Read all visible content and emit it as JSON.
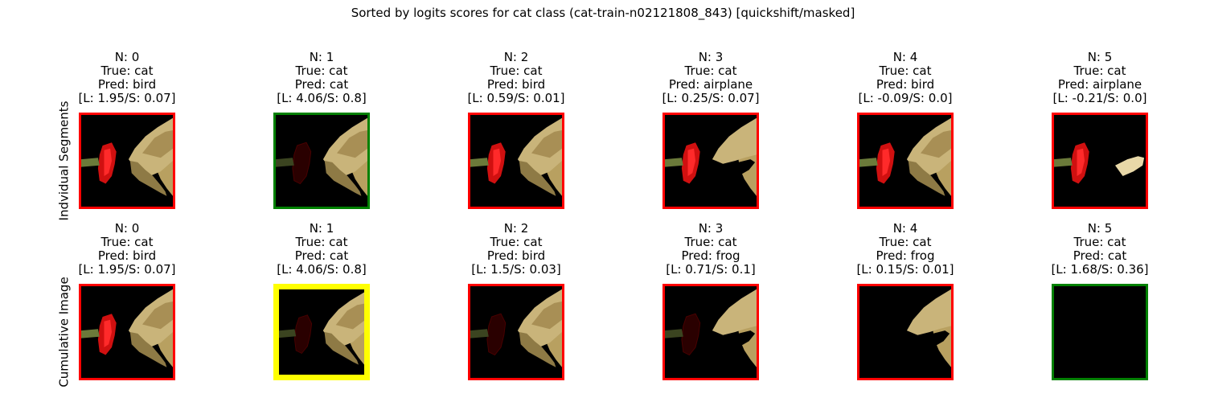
{
  "title": "Sorted by logits scores for cat class (cat-train-n02121808_843) [quickshift/masked]",
  "colors": {
    "correct": "#008000",
    "wrong": "#ff0000",
    "highlight": "#ffff00"
  },
  "chart_data": {
    "type": "image-grid",
    "rows": [
      {
        "label": "Indvidual Segments",
        "cells": [
          {
            "n": "N: 0",
            "true": "True: cat",
            "pred": "Pred: bird",
            "score": "[L: 1.95/S: 0.07]",
            "border": "wrong"
          },
          {
            "n": "N: 1",
            "true": "True: cat",
            "pred": "Pred: cat",
            "score": "[L: 4.06/S: 0.8]",
            "border": "correct"
          },
          {
            "n": "N: 2",
            "true": "True: cat",
            "pred": "Pred: bird",
            "score": "[L: 0.59/S: 0.01]",
            "border": "wrong"
          },
          {
            "n": "N: 3",
            "true": "True: cat",
            "pred": "Pred: airplane",
            "score": "[L: 0.25/S: 0.07]",
            "border": "wrong"
          },
          {
            "n": "N: 4",
            "true": "True: cat",
            "pred": "Pred: bird",
            "score": "[L: -0.09/S: 0.0]",
            "border": "wrong"
          },
          {
            "n": "N: 5",
            "true": "True: cat",
            "pred": "Pred: airplane",
            "score": "[L: -0.21/S: 0.0]",
            "border": "wrong"
          }
        ]
      },
      {
        "label": "Cumulative Image",
        "cells": [
          {
            "n": "N: 0",
            "true": "True: cat",
            "pred": "Pred: bird",
            "score": "[L: 1.95/S: 0.07]",
            "border": "wrong"
          },
          {
            "n": "N: 1",
            "true": "True: cat",
            "pred": "Pred: cat",
            "score": "[L: 4.06/S: 0.8]",
            "border": "highlight"
          },
          {
            "n": "N: 2",
            "true": "True: cat",
            "pred": "Pred: bird",
            "score": "[L: 1.5/S: 0.03]",
            "border": "wrong"
          },
          {
            "n": "N: 3",
            "true": "True: cat",
            "pred": "Pred: frog",
            "score": "[L: 0.71/S: 0.1]",
            "border": "wrong"
          },
          {
            "n": "N: 4",
            "true": "True: cat",
            "pred": "Pred: frog",
            "score": "[L: 0.15/S: 0.01]",
            "border": "wrong"
          },
          {
            "n": "N: 5",
            "true": "True: cat",
            "pred": "Pred: cat",
            "score": "[L: 1.68/S: 0.36]",
            "border": "correct"
          }
        ]
      }
    ]
  }
}
